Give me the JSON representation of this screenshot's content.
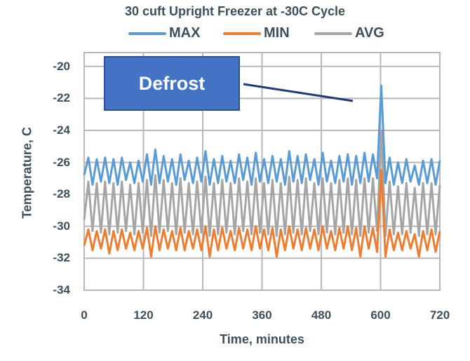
{
  "chart_data": {
    "type": "line",
    "title": "30 cuft Upright Freezer at -30C Cycle",
    "xlabel": "Time, minutes",
    "ylabel": "Temperature, C",
    "xlim": [
      0,
      720
    ],
    "ylim": [
      -34,
      -19
    ],
    "x_ticks": [
      "0",
      "120",
      "240",
      "360",
      "480",
      "600",
      "720"
    ],
    "y_ticks": [
      "-20",
      "-22",
      "-24",
      "-26",
      "-28",
      "-30",
      "-32",
      "-34"
    ],
    "grid": true,
    "legend_position": "top",
    "annotation": {
      "text": "Defrost",
      "points_to": {
        "x": 573,
        "y": -21.2
      }
    },
    "x_step_minutes": 8.5,
    "series": [
      {
        "name": "MAX",
        "color": "#5b9bd5",
        "values": [
          -26.8,
          -25.7,
          -27.4,
          -25.8,
          -27.2,
          -25.7,
          -27.3,
          -25.8,
          -27.4,
          -25.7,
          -27.1,
          -26.0,
          -27.3,
          -25.9,
          -27.2,
          -25.5,
          -27.4,
          -25.2,
          -27.3,
          -25.6,
          -27.2,
          -25.8,
          -27.4,
          -25.5,
          -27.1,
          -25.9,
          -27.3,
          -25.7,
          -27.2,
          -25.3,
          -27.4,
          -25.8,
          -27.3,
          -25.6,
          -27.2,
          -25.9,
          -27.3,
          -25.5,
          -27.1,
          -25.7,
          -27.4,
          -25.4,
          -27.2,
          -25.8,
          -27.3,
          -25.6,
          -27.2,
          -25.8,
          -27.4,
          -25.3,
          -27.2,
          -25.6,
          -27.3,
          -25.5,
          -27.1,
          -25.8,
          -27.4,
          -25.4,
          -27.2,
          -25.9,
          -27.3,
          -25.6,
          -27.2,
          -25.5,
          -27.4,
          -25.6,
          -27.3,
          -25.4,
          -27.2,
          -25.5,
          -27.0,
          -21.2,
          -27.3,
          -25.7,
          -27.4,
          -26.0,
          -27.3,
          -25.8,
          -27.2,
          -26.2,
          -27.4,
          -25.9,
          -27.3,
          -25.8,
          -27.4,
          -25.9
        ]
      },
      {
        "name": "MIN",
        "color": "#ed7d31",
        "values": [
          -31.2,
          -30.2,
          -31.5,
          -30.3,
          -31.4,
          -30.2,
          -31.7,
          -30.3,
          -31.5,
          -30.2,
          -31.4,
          -30.4,
          -31.5,
          -30.3,
          -31.4,
          -30.1,
          -31.9,
          -30.0,
          -31.5,
          -30.2,
          -31.4,
          -30.3,
          -31.5,
          -30.1,
          -31.5,
          -30.3,
          -31.4,
          -30.2,
          -31.5,
          -30.0,
          -31.9,
          -30.2,
          -31.5,
          -30.1,
          -31.4,
          -30.3,
          -31.5,
          -30.1,
          -31.4,
          -30.2,
          -31.5,
          -30.0,
          -31.4,
          -30.2,
          -31.5,
          -30.1,
          -31.9,
          -30.2,
          -31.5,
          -30.0,
          -31.4,
          -30.2,
          -31.5,
          -30.1,
          -31.4,
          -30.2,
          -31.5,
          -30.0,
          -31.4,
          -30.3,
          -31.5,
          -30.1,
          -31.4,
          -30.0,
          -31.5,
          -30.1,
          -31.9,
          -30.0,
          -31.4,
          -30.1,
          -31.6,
          -26.5,
          -31.9,
          -30.2,
          -31.5,
          -30.4,
          -31.5,
          -30.3,
          -31.4,
          -30.5,
          -31.9,
          -30.3,
          -31.5,
          -30.2,
          -31.6,
          -30.3
        ]
      },
      {
        "name": "AVG",
        "color": "#a5a5a5",
        "values": [
          -29.6,
          -27.2,
          -30.3,
          -27.3,
          -30.4,
          -27.2,
          -30.5,
          -27.3,
          -30.4,
          -27.2,
          -30.3,
          -27.4,
          -30.5,
          -27.3,
          -30.4,
          -27.1,
          -30.6,
          -26.8,
          -30.4,
          -27.1,
          -30.3,
          -27.3,
          -30.5,
          -27.0,
          -30.4,
          -27.3,
          -30.5,
          -27.2,
          -30.4,
          -26.9,
          -30.6,
          -27.3,
          -30.5,
          -27.1,
          -30.4,
          -27.3,
          -30.5,
          -27.0,
          -30.3,
          -27.2,
          -30.5,
          -27.0,
          -30.4,
          -27.3,
          -30.5,
          -27.1,
          -30.6,
          -27.3,
          -30.5,
          -26.9,
          -30.4,
          -27.1,
          -30.5,
          -27.0,
          -30.3,
          -27.3,
          -30.5,
          -27.0,
          -30.4,
          -27.3,
          -30.5,
          -27.1,
          -30.4,
          -27.0,
          -30.5,
          -27.1,
          -30.6,
          -27.0,
          -30.4,
          -27.0,
          -30.3,
          -24.0,
          -30.6,
          -27.2,
          -30.5,
          -27.5,
          -30.5,
          -27.3,
          -30.4,
          -27.6,
          -30.6,
          -27.3,
          -30.5,
          -27.3,
          -30.5,
          -27.4
        ]
      }
    ]
  },
  "legend": {
    "items": [
      {
        "label": "MAX",
        "color": "#5b9bd5"
      },
      {
        "label": "MIN",
        "color": "#ed7d31"
      },
      {
        "label": "AVG",
        "color": "#a5a5a5"
      }
    ]
  }
}
